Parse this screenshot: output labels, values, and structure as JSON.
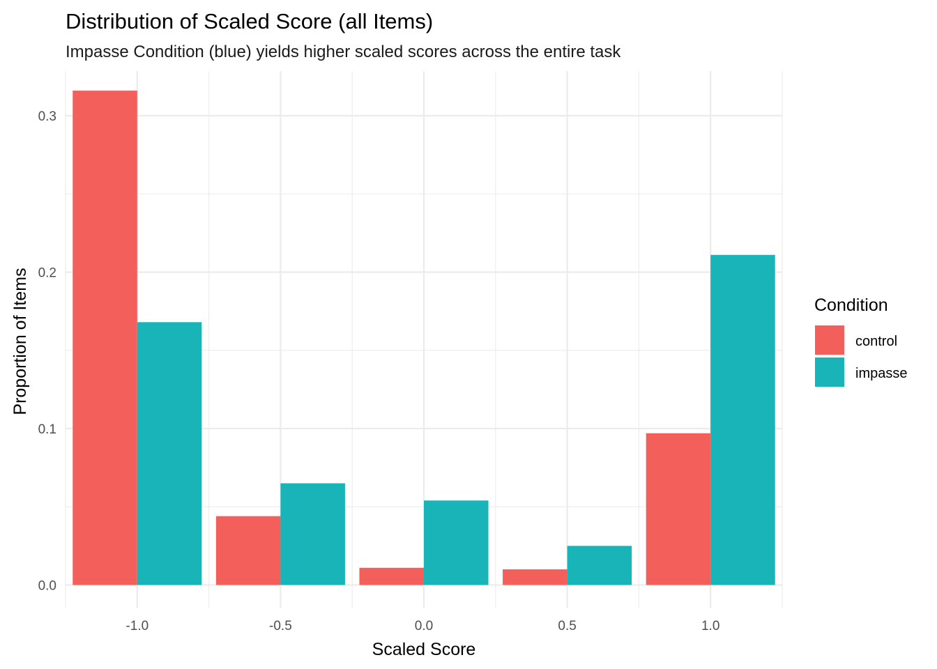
{
  "chart_data": {
    "type": "bar",
    "title": "Distribution of Scaled Score (all Items)",
    "subtitle": "Impasse Condition (blue) yields higher scaled scores across the entire task",
    "xlabel": "Scaled Score",
    "ylabel": "Proportion of Items",
    "categories": [
      -1.0,
      -0.5,
      0.0,
      0.5,
      1.0
    ],
    "x_tick_labels": [
      "-1.0",
      "-0.5",
      "0.0",
      "0.5",
      "1.0"
    ],
    "y_ticks": [
      0.0,
      0.1,
      0.2,
      0.3
    ],
    "y_tick_labels": [
      "0.0",
      "0.1",
      "0.2",
      "0.3"
    ],
    "xlim": [
      -1.25,
      1.25
    ],
    "ylim": [
      -0.0145,
      0.3285
    ],
    "grid": true,
    "legend": {
      "title": "Condition",
      "position": "right"
    },
    "series": [
      {
        "name": "control",
        "color": "#F8766D",
        "values": [
          0.316,
          0.044,
          0.011,
          0.01,
          0.097
        ]
      },
      {
        "name": "impasse",
        "color": "#00BFC4",
        "values": [
          0.168,
          0.065,
          0.054,
          0.025,
          0.211
        ]
      }
    ]
  },
  "colors": {
    "control": "#F35F5B",
    "impasse": "#18B4B8",
    "grid": "#ebebeb"
  }
}
